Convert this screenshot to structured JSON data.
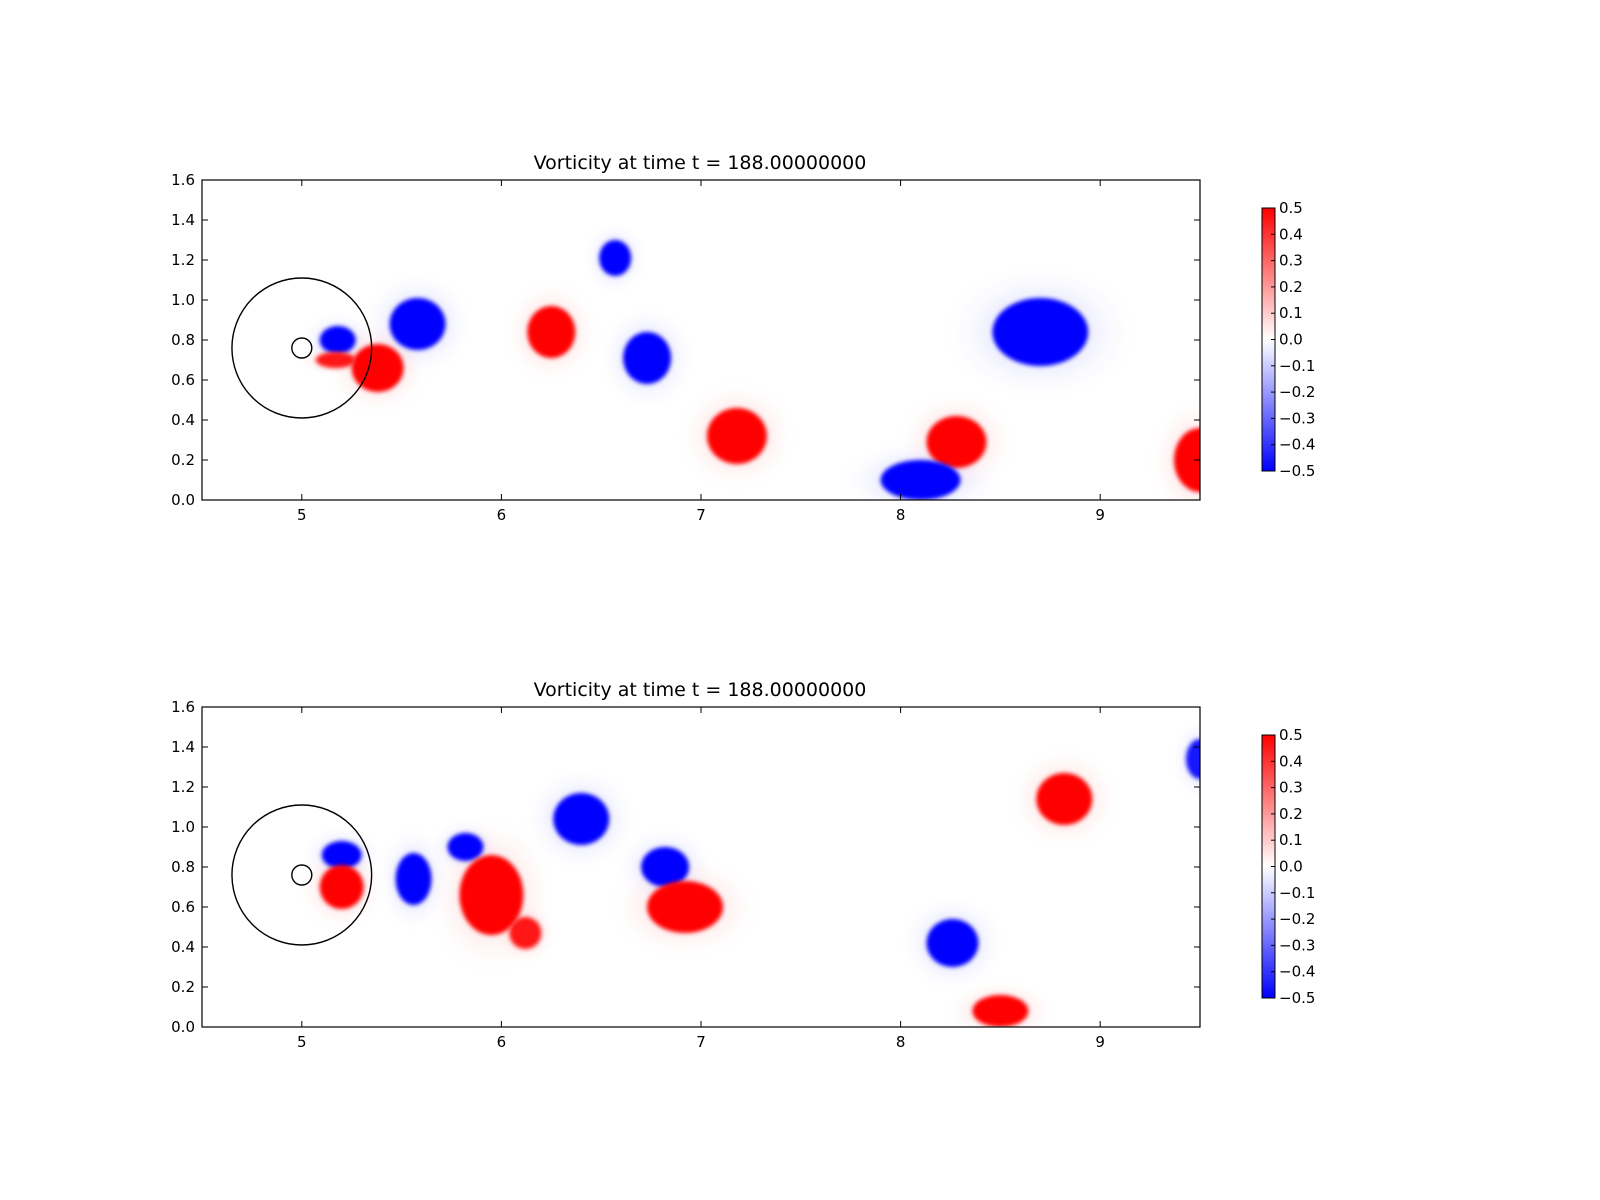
{
  "chart_data": [
    {
      "type": "heatmap",
      "title": "Vorticity at time t =   188.00000000",
      "xlabel": "",
      "ylabel": "",
      "xlim": [
        4.5,
        9.5
      ],
      "ylim": [
        0.0,
        1.6
      ],
      "x_ticks": [
        5,
        6,
        7,
        8,
        9
      ],
      "y_ticks": [
        "0.0",
        "0.2",
        "0.4",
        "0.6",
        "0.8",
        "1.0",
        "1.2",
        "1.4",
        "1.6"
      ],
      "grid": false,
      "colormap": {
        "low": "#0000ff",
        "mid": "#ffffff",
        "high": "#ff0000"
      },
      "colorbar": {
        "range": [
          -0.5,
          0.5
        ],
        "ticks": [
          "0.5",
          "0.4",
          "0.3",
          "0.2",
          "0.1",
          "0.0",
          "−0.1",
          "−0.2",
          "−0.3",
          "−0.4",
          "−0.5"
        ]
      },
      "circles": [
        {
          "cx": 5.0,
          "cy": 0.76,
          "r": 0.35
        },
        {
          "cx": 5.0,
          "cy": 0.76,
          "r": 0.05
        }
      ],
      "vortices": [
        {
          "x": 5.58,
          "y": 0.88,
          "rx": 0.14,
          "ry": 0.13,
          "value": -0.5
        },
        {
          "x": 5.18,
          "y": 0.8,
          "rx": 0.09,
          "ry": 0.07,
          "value": -0.5
        },
        {
          "x": 5.38,
          "y": 0.66,
          "rx": 0.13,
          "ry": 0.12,
          "value": 0.5
        },
        {
          "x": 5.17,
          "y": 0.7,
          "rx": 0.1,
          "ry": 0.04,
          "value": 0.45
        },
        {
          "x": 6.25,
          "y": 0.84,
          "rx": 0.12,
          "ry": 0.13,
          "value": 0.5
        },
        {
          "x": 6.57,
          "y": 1.21,
          "rx": 0.08,
          "ry": 0.09,
          "value": -0.5
        },
        {
          "x": 6.73,
          "y": 0.71,
          "rx": 0.12,
          "ry": 0.13,
          "value": -0.5
        },
        {
          "x": 7.18,
          "y": 0.32,
          "rx": 0.15,
          "ry": 0.14,
          "value": 0.5
        },
        {
          "x": 8.28,
          "y": 0.29,
          "rx": 0.15,
          "ry": 0.13,
          "value": 0.5
        },
        {
          "x": 8.1,
          "y": 0.1,
          "rx": 0.2,
          "ry": 0.1,
          "value": -0.5
        },
        {
          "x": 8.7,
          "y": 0.84,
          "rx": 0.24,
          "ry": 0.17,
          "value": -0.5
        },
        {
          "x": 9.5,
          "y": 0.2,
          "rx": 0.13,
          "ry": 0.16,
          "value": 0.5
        }
      ]
    },
    {
      "type": "heatmap",
      "title": "Vorticity at time t =   188.00000000",
      "xlabel": "",
      "ylabel": "",
      "xlim": [
        4.5,
        9.5
      ],
      "ylim": [
        0.0,
        1.6
      ],
      "x_ticks": [
        5,
        6,
        7,
        8,
        9
      ],
      "y_ticks": [
        "0.0",
        "0.2",
        "0.4",
        "0.6",
        "0.8",
        "1.0",
        "1.2",
        "1.4",
        "1.6"
      ],
      "grid": false,
      "colormap": {
        "low": "#0000ff",
        "mid": "#ffffff",
        "high": "#ff0000"
      },
      "colorbar": {
        "range": [
          -0.5,
          0.5
        ],
        "ticks": [
          "0.5",
          "0.4",
          "0.3",
          "0.2",
          "0.1",
          "0.0",
          "−0.1",
          "−0.2",
          "−0.3",
          "−0.4",
          "−0.5"
        ]
      },
      "circles": [
        {
          "cx": 5.0,
          "cy": 0.76,
          "r": 0.35
        },
        {
          "cx": 5.0,
          "cy": 0.76,
          "r": 0.05
        }
      ],
      "vortices": [
        {
          "x": 5.2,
          "y": 0.86,
          "rx": 0.1,
          "ry": 0.07,
          "value": -0.5
        },
        {
          "x": 5.2,
          "y": 0.7,
          "rx": 0.11,
          "ry": 0.11,
          "value": 0.5
        },
        {
          "x": 5.56,
          "y": 0.74,
          "rx": 0.09,
          "ry": 0.13,
          "value": -0.5
        },
        {
          "x": 5.82,
          "y": 0.9,
          "rx": 0.09,
          "ry": 0.07,
          "value": -0.5
        },
        {
          "x": 5.95,
          "y": 0.66,
          "rx": 0.16,
          "ry": 0.2,
          "value": 0.5
        },
        {
          "x": 6.12,
          "y": 0.47,
          "rx": 0.08,
          "ry": 0.08,
          "value": 0.45
        },
        {
          "x": 6.4,
          "y": 1.04,
          "rx": 0.14,
          "ry": 0.13,
          "value": -0.5
        },
        {
          "x": 6.82,
          "y": 0.8,
          "rx": 0.12,
          "ry": 0.1,
          "value": -0.5
        },
        {
          "x": 6.92,
          "y": 0.6,
          "rx": 0.19,
          "ry": 0.13,
          "value": 0.5
        },
        {
          "x": 8.26,
          "y": 0.42,
          "rx": 0.13,
          "ry": 0.12,
          "value": -0.5
        },
        {
          "x": 8.5,
          "y": 0.08,
          "rx": 0.14,
          "ry": 0.08,
          "value": 0.5
        },
        {
          "x": 8.82,
          "y": 1.14,
          "rx": 0.14,
          "ry": 0.13,
          "value": 0.5
        },
        {
          "x": 9.5,
          "y": 1.34,
          "rx": 0.07,
          "ry": 0.1,
          "value": -0.45
        }
      ]
    }
  ]
}
